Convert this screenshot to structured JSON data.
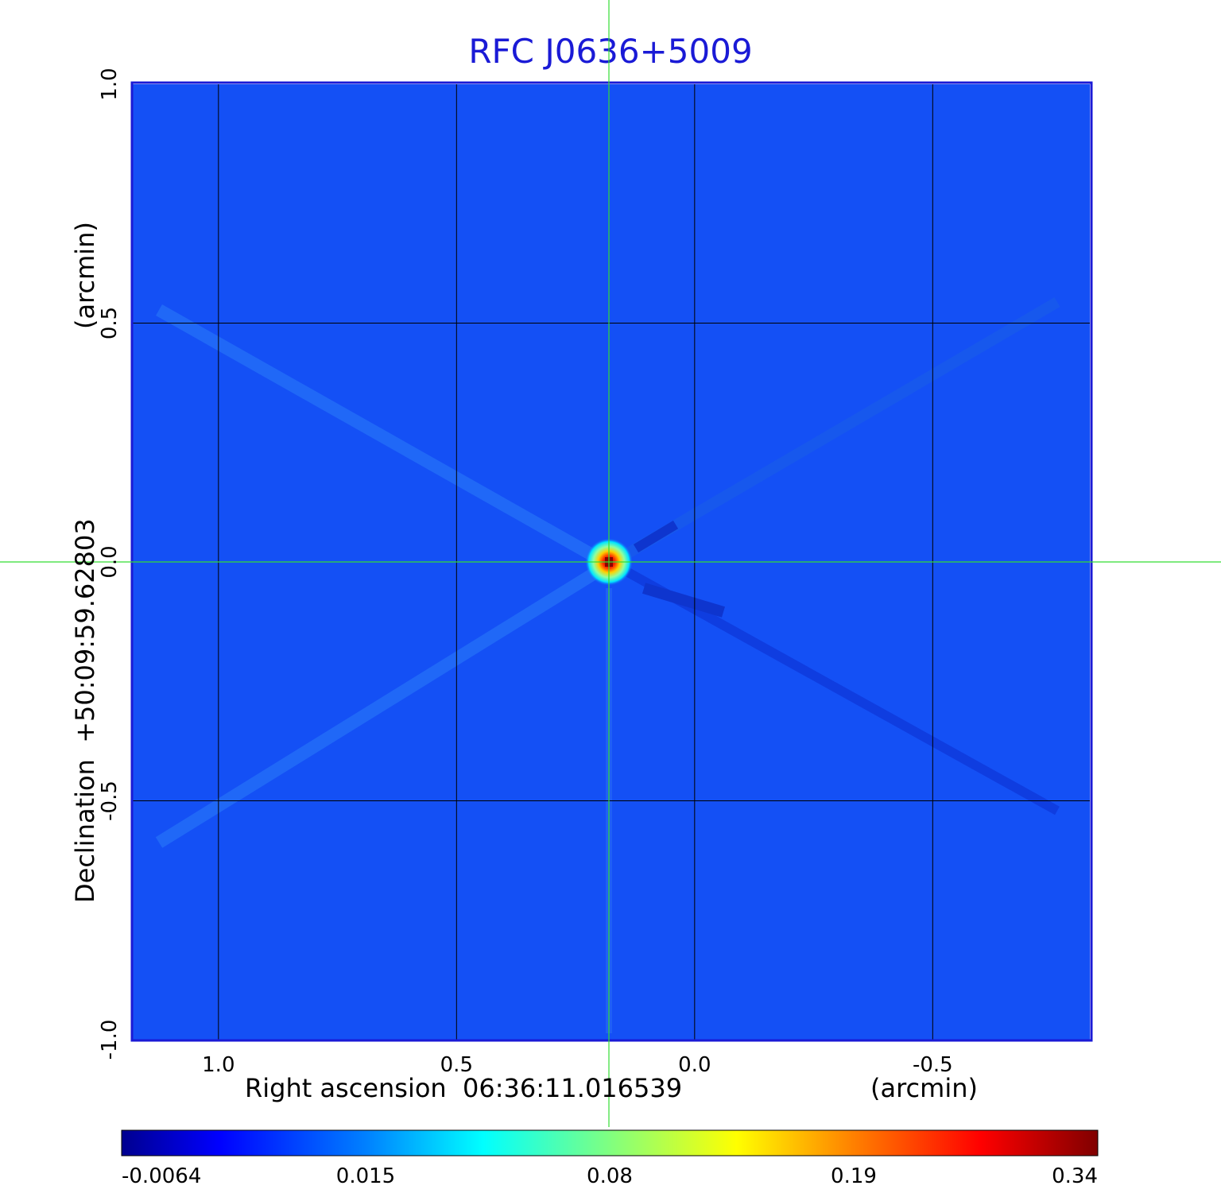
{
  "chart_data": {
    "type": "heatmap",
    "title": "RFC J0636+5009",
    "xlabel": "Right ascension  06:36:11.016539",
    "xlabel_unit": "(arcmin)",
    "ylabel": "Declination  +50:09:59.62803",
    "ylabel_unit": "(arcmin)",
    "x_ticks": [
      "1.0",
      "0.5",
      "0.0",
      "-0.5"
    ],
    "y_ticks": [
      "1.0",
      "0.5",
      "0.0",
      "-0.5",
      "-1.0"
    ],
    "x_tick_values": [
      1.0,
      0.5,
      0.0,
      -0.5
    ],
    "y_tick_values": [
      1.0,
      0.5,
      0.0,
      -0.5,
      -1.0
    ],
    "xlim": [
      1.18,
      -0.83
    ],
    "ylim": [
      -1.0,
      1.0
    ],
    "grid": true,
    "crosshair": {
      "x": 0.18,
      "y": 0.0
    },
    "source": {
      "x": 0.18,
      "y": 0.0,
      "peak": 0.34
    },
    "colorbar": {
      "ticks": [
        "-0.0064",
        "0.015",
        "0.08",
        "0.19",
        "0.34"
      ],
      "min": -0.0064,
      "max": 0.34,
      "colormap": "jet"
    },
    "colors": {
      "title": "#1a1ad6",
      "background_field": "#1450f5",
      "frame": "#1a1ad6",
      "crosshair": "#33dd33",
      "grid": "#000000"
    }
  }
}
